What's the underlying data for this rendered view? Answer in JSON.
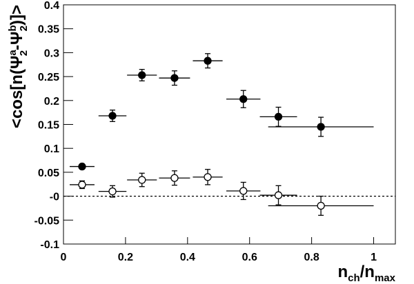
{
  "chart_data": {
    "type": "errorbar",
    "x_label": [
      "n",
      "ch",
      "/n",
      "max"
    ],
    "y_label": [
      "<cos[n(Ψ",
      "a",
      "2",
      "-Ψ",
      "b",
      "2",
      ")]>"
    ],
    "xlim": [
      0,
      1.07
    ],
    "ylim": [
      -0.1,
      0.4
    ],
    "xticks": [
      0,
      0.2,
      0.4,
      0.6,
      0.8,
      1
    ],
    "yticks": [
      -0.1,
      -0.05,
      {
        "value": 0,
        "label": "-0"
      },
      0.05,
      0.1,
      0.15,
      0.2,
      0.25,
      0.3,
      0.35,
      0.4
    ],
    "series": [
      {
        "marker": "filled",
        "color": "#000000",
        "x": [
          0.06,
          0.158,
          0.253,
          0.358,
          0.465,
          0.58,
          0.693,
          0.83
        ],
        "values": [
          0.062,
          0.168,
          0.253,
          0.247,
          0.283,
          0.203,
          0.166,
          0.145
        ],
        "xerr": [
          0.04,
          0.045,
          0.048,
          0.05,
          0.048,
          0.055,
          0.06,
          0.17
        ],
        "yerr": [
          0.005,
          0.012,
          0.012,
          0.015,
          0.015,
          0.018,
          0.02,
          0.02
        ]
      },
      {
        "marker": "open",
        "color": "#000000",
        "x": [
          0.06,
          0.158,
          0.253,
          0.358,
          0.465,
          0.58,
          0.693,
          0.83
        ],
        "values": [
          0.024,
          0.01,
          0.034,
          0.038,
          0.04,
          0.011,
          0.002,
          -0.02
        ],
        "xerr": [
          0.04,
          0.045,
          0.048,
          0.05,
          0.048,
          0.055,
          0.06,
          0.17
        ],
        "yerr": [
          0.008,
          0.012,
          0.014,
          0.015,
          0.016,
          0.018,
          0.02,
          0.02
        ]
      }
    ]
  }
}
